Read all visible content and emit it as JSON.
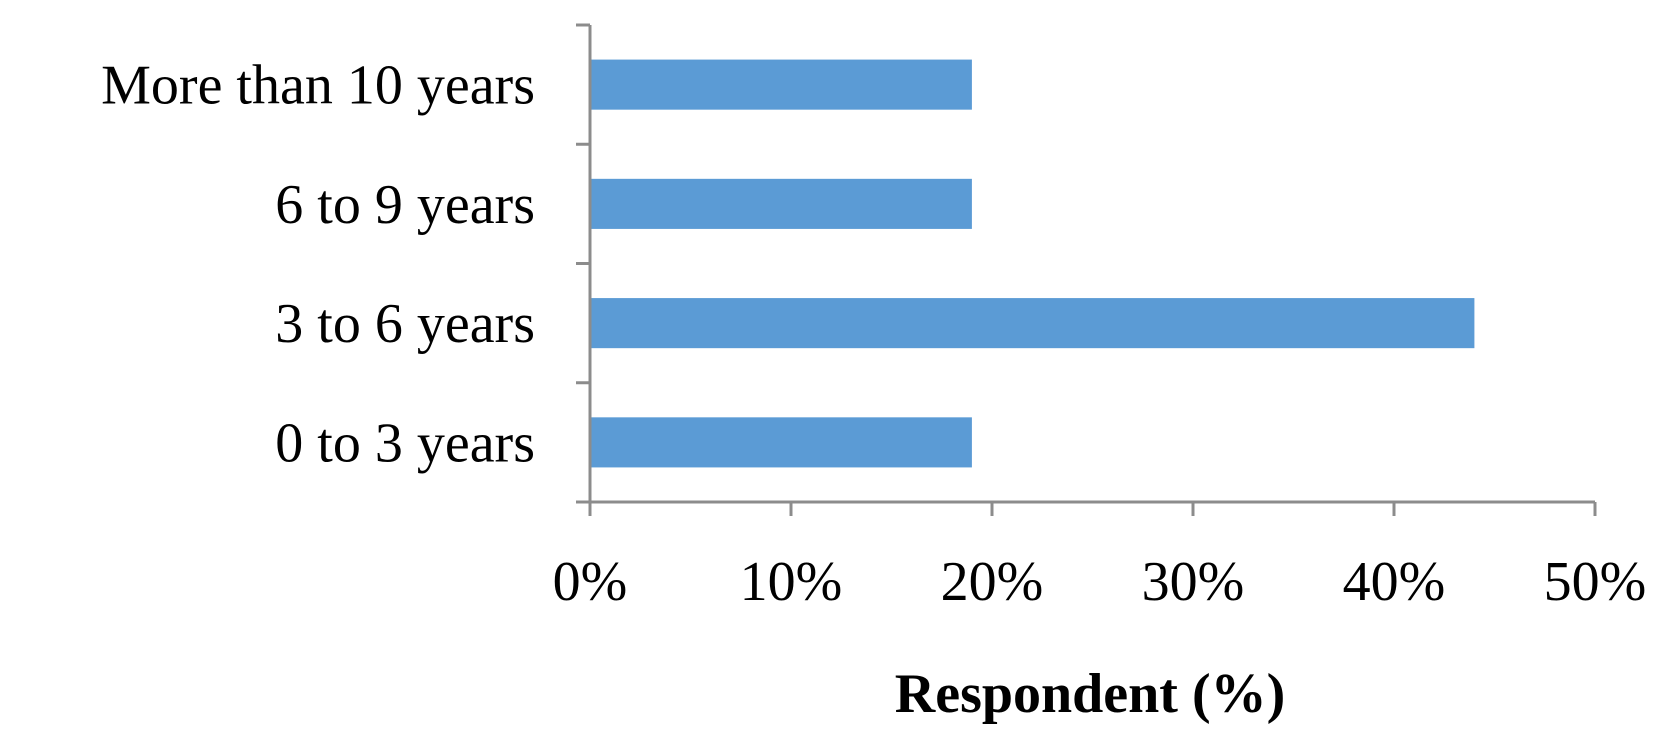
{
  "chart_data": {
    "type": "bar",
    "orientation": "horizontal",
    "categories": [
      "0 to 3 years",
      "3 to 6 years",
      "6 to 9 years",
      "More than 10 years"
    ],
    "values": [
      19,
      44,
      19,
      19
    ],
    "xlabel": "Respondent (%)",
    "ylabel": "",
    "xlim": [
      0,
      50
    ],
    "xticks": [
      0,
      10,
      20,
      30,
      40,
      50
    ],
    "xtick_labels": [
      "0%",
      "10%",
      "20%",
      "30%",
      "40%",
      "50%"
    ],
    "grid": false,
    "bar_color": "#5b9bd5",
    "axis_color": "#8c8c8c"
  }
}
